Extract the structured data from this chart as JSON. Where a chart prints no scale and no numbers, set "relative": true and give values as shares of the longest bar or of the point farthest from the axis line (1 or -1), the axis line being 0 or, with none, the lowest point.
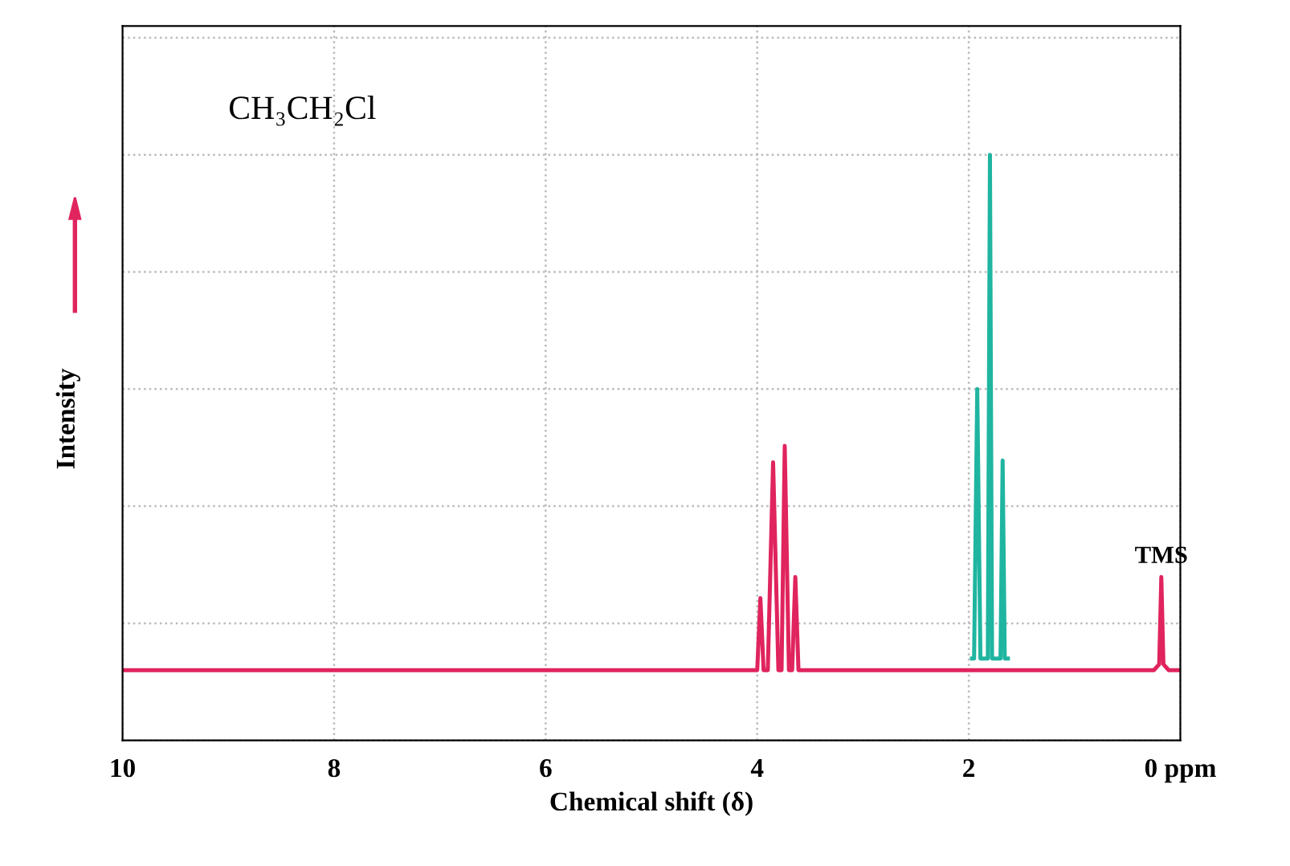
{
  "chart_data": {
    "type": "line",
    "relative": true,
    "xlabel": "Chemical shift (δ)",
    "ylabel": "Intensity",
    "xlim": [
      10,
      0
    ],
    "xticks": [
      10,
      8,
      6,
      4,
      2,
      {
        "value": 0,
        "label": "0 ppm"
      }
    ],
    "grid": true,
    "marker": "none",
    "line_style": "solid",
    "annotations": [
      "CH₃CH₂Cl",
      {
        "text": "TMS",
        "x": 0.18,
        "y": 0.279
      }
    ],
    "series": [
      {
        "color": "#e0245e",
        "x": [
          10,
          8,
          6,
          4.2,
          4.0,
          3.97,
          3.94,
          3.9,
          3.85,
          3.8,
          3.77,
          3.74,
          3.7,
          3.67,
          3.64,
          3.61,
          3.57,
          3.0,
          2.0,
          1.6,
          1.2,
          0.8,
          0.25,
          0.2,
          0.18,
          0.16,
          0.11,
          0
        ],
        "values": [
          0.12,
          0.12,
          0.12,
          0.12,
          0.12,
          0.243,
          0.12,
          0.12,
          0.475,
          0.12,
          0.12,
          0.503,
          0.12,
          0.12,
          0.279,
          0.12,
          0.12,
          0.12,
          0.12,
          0.12,
          0.12,
          0.12,
          0.12,
          0.13,
          0.279,
          0.13,
          0.12,
          0.12
        ]
      },
      {
        "color": "#1fb5a0",
        "x": [
          1.97,
          1.95,
          1.92,
          1.89,
          1.84,
          1.82,
          1.8,
          1.78,
          1.72,
          1.7,
          1.68,
          1.66,
          1.63
        ],
        "values": [
          0.14,
          0.14,
          0.6,
          0.14,
          0.14,
          0.14,
          1.0,
          0.14,
          0.14,
          0.14,
          0.478,
          0.14,
          0.14
        ]
      }
    ]
  }
}
